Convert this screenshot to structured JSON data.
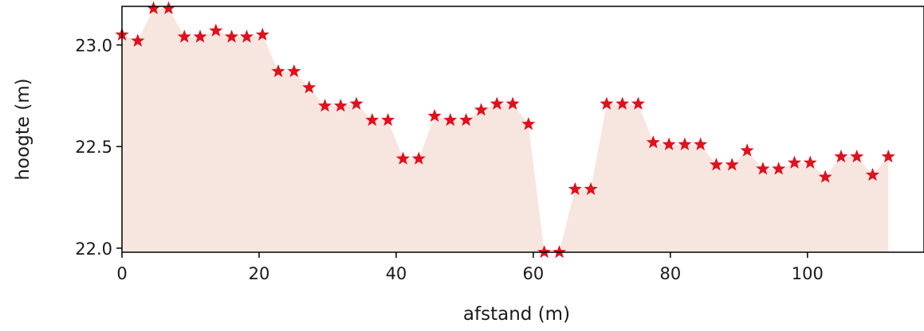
{
  "chart_data": {
    "type": "area",
    "xlabel": "afstand (m)",
    "ylabel": "hoogte (m)",
    "xlim": [
      0,
      117
    ],
    "ylim": [
      21.98,
      23.19
    ],
    "xticks": [
      0,
      20,
      40,
      60,
      80,
      100
    ],
    "xtick_labels": [
      "0",
      "20",
      "40",
      "60",
      "80",
      "100"
    ],
    "yticks": [
      22.0,
      22.5,
      23.0
    ],
    "ytick_labels": [
      "22.0",
      "22.5",
      "23.0"
    ],
    "grid": false,
    "marker": "star",
    "colors": {
      "fill": "#f7e5df",
      "marker": "#e0101c",
      "axis": "#000000"
    },
    "series": [
      {
        "x": [
          0,
          2.3,
          4.6,
          6.8,
          9.1,
          11.4,
          13.7,
          16.0,
          18.2,
          20.5,
          22.8,
          25.1,
          27.3,
          29.6,
          31.9,
          34.2,
          36.5,
          38.8,
          41.0,
          43.3,
          45.6,
          47.9,
          50.2,
          52.4,
          54.7,
          57.0,
          59.3,
          61.6,
          63.8,
          66.1,
          68.4,
          70.7,
          73.0,
          75.3,
          77.5,
          79.8,
          82.1,
          84.4,
          86.7,
          89.0,
          91.2,
          93.5,
          95.8,
          98.1,
          100.4,
          102.6,
          104.9,
          107.2,
          109.5,
          111.8
        ],
        "values": [
          23.05,
          23.02,
          23.18,
          23.18,
          23.04,
          23.04,
          23.07,
          23.04,
          23.04,
          23.05,
          22.87,
          22.87,
          22.79,
          22.7,
          22.7,
          22.71,
          22.63,
          22.63,
          22.44,
          22.44,
          22.65,
          22.63,
          22.63,
          22.68,
          22.71,
          22.71,
          22.61,
          21.98,
          21.98,
          22.29,
          22.29,
          22.71,
          22.71,
          22.71,
          22.52,
          22.51,
          22.51,
          22.51,
          22.41,
          22.41,
          22.48,
          22.39,
          22.39,
          22.42,
          22.42,
          22.35,
          22.45,
          22.45,
          22.36,
          22.45
        ]
      }
    ]
  }
}
